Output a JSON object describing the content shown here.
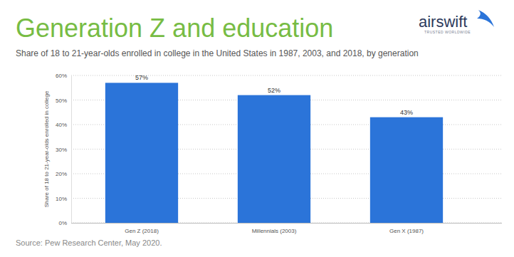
{
  "chart_data": {
    "type": "bar",
    "title": "Generation Z and education",
    "subtitle": "Share of 18 to 21-year-olds enrolled in college in the United States in 1987, 2003, and 2018, by generation",
    "y_label": "Share of 18 to 21-year-olds enrolled in college",
    "source": "Source: Pew Research Center, May 2020.",
    "categories": [
      "Gen Z (2018)",
      "Millennials (2003)",
      "Gen X (1987)"
    ],
    "values": [
      57,
      52,
      43
    ],
    "value_labels": [
      "57%",
      "52%",
      "43%"
    ],
    "data_labels": true,
    "color": "#2b74d9",
    "ylim": [
      0,
      60
    ],
    "yticks": [
      {
        "value": 0,
        "label": "0%"
      },
      {
        "value": 10,
        "label": "10%"
      },
      {
        "value": 20,
        "label": "20%"
      },
      {
        "value": 30,
        "label": "30%"
      },
      {
        "value": 40,
        "label": "40%"
      },
      {
        "value": 50,
        "label": "50%"
      },
      {
        "value": 60,
        "label": "60%"
      }
    ],
    "grid": true
  },
  "logo": {
    "name": "airswift",
    "tagline": "TRUSTED WORLDWIDE"
  }
}
